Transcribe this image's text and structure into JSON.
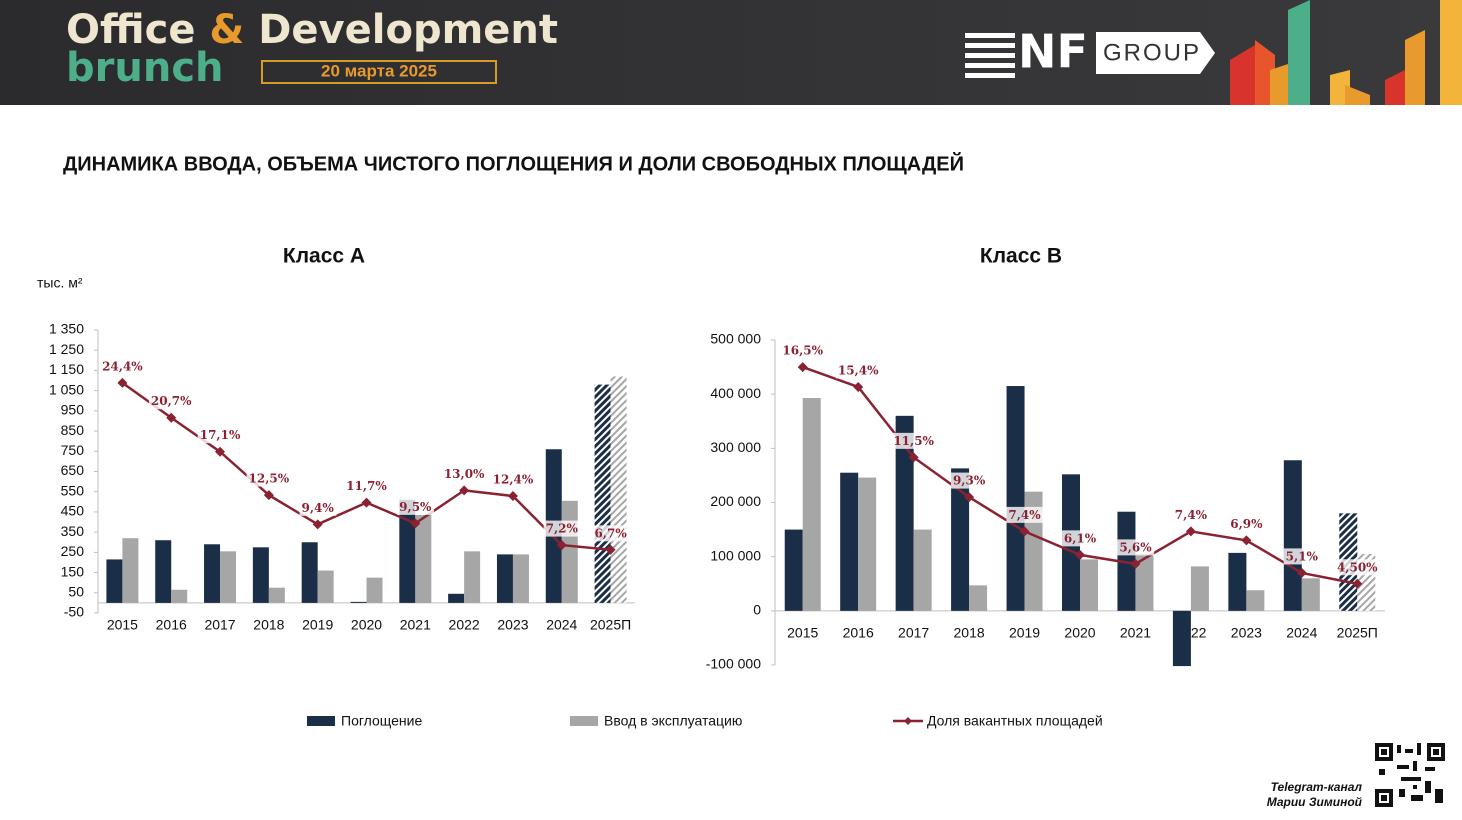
{
  "header": {
    "title_part1": "Office",
    "ampersand": "&",
    "title_part2": "Development",
    "subtitle": "brunch",
    "date": "20 марта 2025",
    "logo_text": "NF",
    "logo_group": "GROUP"
  },
  "slide_title": "ДИНАМИКА ВВОДА, ОБЪЕМА ЧИСТОГО ПОГЛОЩЕНИЯ И ДОЛИ СВОБОДНЫХ ПЛОЩАДЕЙ",
  "footer": {
    "line1": "Telegram-канал",
    "line2": "Марии Зиминой"
  },
  "chart_data": [
    {
      "type": "bar_line",
      "title": "Класс А",
      "y_label": "тыс. м²",
      "categories": [
        "2015",
        "2016",
        "2017",
        "2018",
        "2019",
        "2020",
        "2021",
        "2022",
        "2023",
        "2024",
        "2025П"
      ],
      "series": [
        {
          "name": "Поглощение",
          "type": "bar",
          "color": "#1b2e47",
          "values": [
            215,
            310,
            290,
            275,
            300,
            5,
            510,
            45,
            240,
            760,
            1080
          ]
        },
        {
          "name": "Ввод в эксплуатацию",
          "type": "bar",
          "color": "#a6a6a6",
          "values": [
            320,
            65,
            255,
            75,
            160,
            125,
            435,
            255,
            240,
            505,
            1120
          ]
        },
        {
          "name": "Доля вакантных площадей",
          "type": "line",
          "axis": "y2",
          "color": "#8b2232",
          "values": [
            24.4,
            20.7,
            17.1,
            12.5,
            9.4,
            11.7,
            9.5,
            13.0,
            12.4,
            7.2,
            6.7
          ],
          "value_labels": [
            "24,4%",
            "20,7%",
            "17,1%",
            "12,5%",
            "9,4%",
            "11,7%",
            "9,5%",
            "13,0%",
            "12,4%",
            "7,2%",
            "6,7%"
          ]
        }
      ],
      "ylim": [
        -50,
        1350
      ],
      "yticks": [
        -50,
        50,
        150,
        250,
        350,
        450,
        550,
        650,
        750,
        850,
        950,
        {
          "value": 1050,
          "label": "1 050"
        },
        {
          "value": 1150,
          "label": "1 150"
        },
        {
          "value": 1250,
          "label": "1 250"
        },
        {
          "value": 1350,
          "label": "1 350"
        }
      ],
      "y2lim": [
        0,
        30
      ],
      "forecast_hatched": true
    },
    {
      "type": "bar_line",
      "title": "Класс В",
      "categories": [
        "2015",
        "2016",
        "2017",
        "2018",
        "2019",
        "2020",
        "2021",
        "2022",
        "2023",
        "2024",
        "2025П"
      ],
      "series": [
        {
          "type": "bar",
          "color": "#1b2e47",
          "values": [
            150000,
            255000,
            360000,
            263000,
            415000,
            252000,
            183000,
            -102000,
            107000,
            278000,
            180000
          ]
        },
        {
          "type": "bar",
          "color": "#a6a6a6",
          "values": [
            393000,
            246000,
            150000,
            47000,
            220000,
            95000,
            105000,
            82000,
            38000,
            60000,
            105000
          ]
        },
        {
          "type": "line",
          "axis": "y2",
          "color": "#8b2232",
          "values": [
            16.5,
            15.4,
            11.5,
            9.3,
            7.4,
            6.1,
            5.6,
            7.4,
            6.9,
            5.1,
            4.5
          ],
          "value_labels": [
            "16,5%",
            "15,4%",
            "11,5%",
            "9,3%",
            "7,4%",
            "6,1%",
            "5,6%",
            "7,4%",
            "6,9%",
            "5,1%",
            "4,50%"
          ]
        }
      ],
      "ylim": [
        -100000,
        500000
      ],
      "yticks": [
        {
          "value": -100000,
          "label": "-100 000"
        },
        0,
        {
          "value": 100000,
          "label": "100 000"
        },
        {
          "value": 200000,
          "label": "200 000"
        },
        {
          "value": 300000,
          "label": "300 000"
        },
        {
          "value": 400000,
          "label": "400 000"
        },
        {
          "value": 500000,
          "label": "500 000"
        }
      ],
      "y2lim": [
        0,
        18
      ],
      "forecast_hatched": true
    }
  ]
}
